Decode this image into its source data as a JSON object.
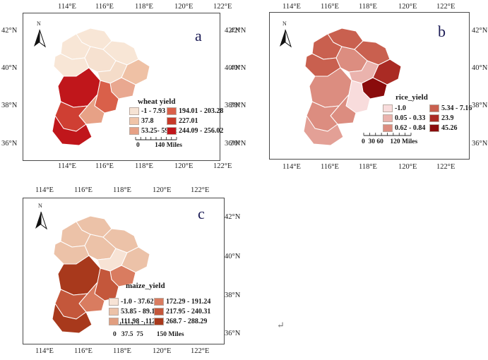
{
  "panels": [
    {
      "letter": "a",
      "legend_title": "wheat yield",
      "legend": [
        {
          "label": "-1 - 7.93",
          "color": "#f6e3d4"
        },
        {
          "label": "194.01 - 203.28",
          "color": "#d9604a"
        },
        {
          "label": "37.8",
          "color": "#f0c4a8"
        },
        {
          "label": "227.01",
          "color": "#c63a2a"
        },
        {
          "label": "53.25- 59.02",
          "color": "#e7a186"
        },
        {
          "label": "244.09 - 256.02",
          "color": "#c0161b"
        }
      ],
      "scale_label": "0         140 Miles",
      "region_colors": [
        "#f8e6d6",
        "#f8e6d6",
        "#f8e6d6",
        "#f6e1d0",
        "#f8e6d6",
        "#f4dcc9",
        "#efc1a5",
        "#e9a890",
        "#c0161b",
        "#d9604a",
        "#e7a186",
        "#cf3f33",
        "#c0161b"
      ]
    },
    {
      "letter": "b",
      "legend_title": "rice_yield",
      "legend": [
        {
          "label": "-1.0",
          "color": "#f8dcdc"
        },
        {
          "label": "5.34 - 7.16",
          "color": "#c9604f"
        },
        {
          "label": "0.05 - 0.33",
          "color": "#eab3ad"
        },
        {
          "label": "23.9",
          "color": "#aa2b24"
        },
        {
          "label": "0.62 - 0.84",
          "color": "#dc8d80"
        },
        {
          "label": "45.26",
          "color": "#8a0c0c"
        }
      ],
      "scale_label": "0  30 60    120 Miles",
      "region_colors": [
        "#c9604f",
        "#c9604f",
        "#c9604f",
        "#dc8d80",
        "#c9604f",
        "#eab3ad",
        "#aa2b24",
        "#8a0c0c",
        "#dc8d80",
        "#f8dcdc",
        "#dc8d80",
        "#dc8d80",
        "#e3a096"
      ]
    },
    {
      "letter": "c",
      "legend_title": "maize_yield",
      "legend": [
        {
          "label": "-1.0 - 37.62",
          "color": "#f7e3d5"
        },
        {
          "label": "172.29 - 191.24",
          "color": "#d97c60"
        },
        {
          "label": "53.85 - 89.12",
          "color": "#ecc2a8"
        },
        {
          "label": "217.95 - 240.31",
          "color": "#c4573b"
        },
        {
          "label": "111.98 - 112.26",
          "color": "#e19e80"
        },
        {
          "label": "268.7 - 288.29",
          "color": "#a8391c"
        }
      ],
      "scale_label": "0   37.5  75        150 Miles",
      "region_colors": [
        "#ecc2a8",
        "#ecc2a8",
        "#ecc2a8",
        "#ecc2a8",
        "#ecc2a8",
        "#f7e3d5",
        "#ecc2a8",
        "#d97c60",
        "#a8391c",
        "#c4573b",
        "#d97c60",
        "#c4573b",
        "#a8391c"
      ]
    }
  ],
  "axis": {
    "lon_labels": [
      "114°E",
      "116°E",
      "118°E",
      "120°E",
      "122°E"
    ],
    "lat_labels": [
      "42°N",
      "40°N",
      "38°N",
      "36°N"
    ]
  },
  "north_label": "N",
  "return_mark": "↵"
}
